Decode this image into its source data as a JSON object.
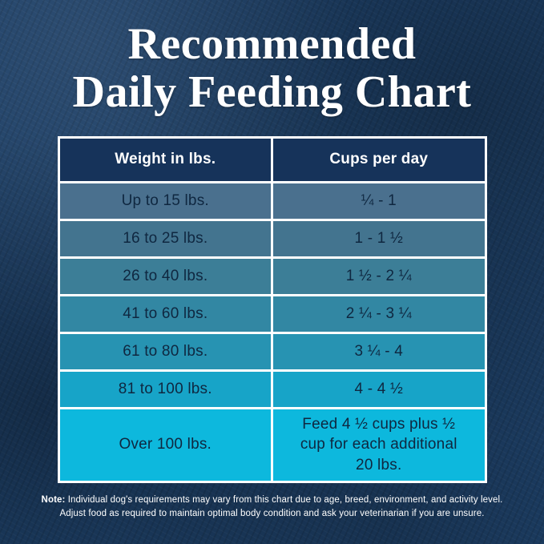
{
  "title": {
    "line1": "Recommended",
    "line2": "Daily Feeding Chart"
  },
  "table": {
    "headers": [
      "Weight in lbs.",
      "Cups per day"
    ],
    "rows": [
      {
        "weight": "Up to 15 lbs.",
        "cups": "¼ - 1"
      },
      {
        "weight": "16 to 25 lbs.",
        "cups": "1 - 1 ½"
      },
      {
        "weight": "26 to 40 lbs.",
        "cups": "1 ½ - 2 ¼"
      },
      {
        "weight": "41 to 60 lbs.",
        "cups": "2 ¼ - 3 ¼"
      },
      {
        "weight": "61 to 80 lbs.",
        "cups": "3 ¼ - 4"
      },
      {
        "weight": "81 to 100 lbs.",
        "cups": "4 - 4 ½"
      },
      {
        "weight": "Over 100 lbs.",
        "cups": "Feed 4 ½ cups plus ½ cup for each additional 20 lbs."
      }
    ],
    "header_bg": "#16335a",
    "row_colors": [
      "#4a708e",
      "#43748f",
      "#3c7e97",
      "#3287a3",
      "#2793b2",
      "#17a4c8",
      "#0db8dd"
    ],
    "border_color": "#ffffff",
    "cell_text_color": "#0f2740",
    "background_color": "#1d3f66"
  },
  "note": {
    "prefix": "Note:",
    "line1": " Individual dog's requirements may vary from this chart due to age, breed, environment, and activity level.",
    "line2": "Adjust food as required to maintain optimal body condition and ask your veterinarian if you are unsure."
  },
  "chart_data": {
    "type": "table",
    "title": "Recommended Daily Feeding Chart",
    "columns": [
      "Weight in lbs.",
      "Cups per day"
    ],
    "rows": [
      [
        "Up to 15 lbs.",
        "1/4 - 1"
      ],
      [
        "16 to 25 lbs.",
        "1 - 1 1/2"
      ],
      [
        "26 to 40 lbs.",
        "1 1/2 - 2 1/4"
      ],
      [
        "41 to 60 lbs.",
        "2 1/4 - 3 1/4"
      ],
      [
        "61 to 80 lbs.",
        "3 1/4 - 4"
      ],
      [
        "81 to 100 lbs.",
        "4 - 4 1/2"
      ],
      [
        "Over 100 lbs.",
        "Feed 4 1/2 cups plus 1/2 cup for each additional 20 lbs."
      ]
    ],
    "footnote": "Note: Individual dog's requirements may vary from this chart due to age, breed, environment, and activity level. Adjust food as required to maintain optimal body condition and ask your veterinarian if you are unsure."
  }
}
